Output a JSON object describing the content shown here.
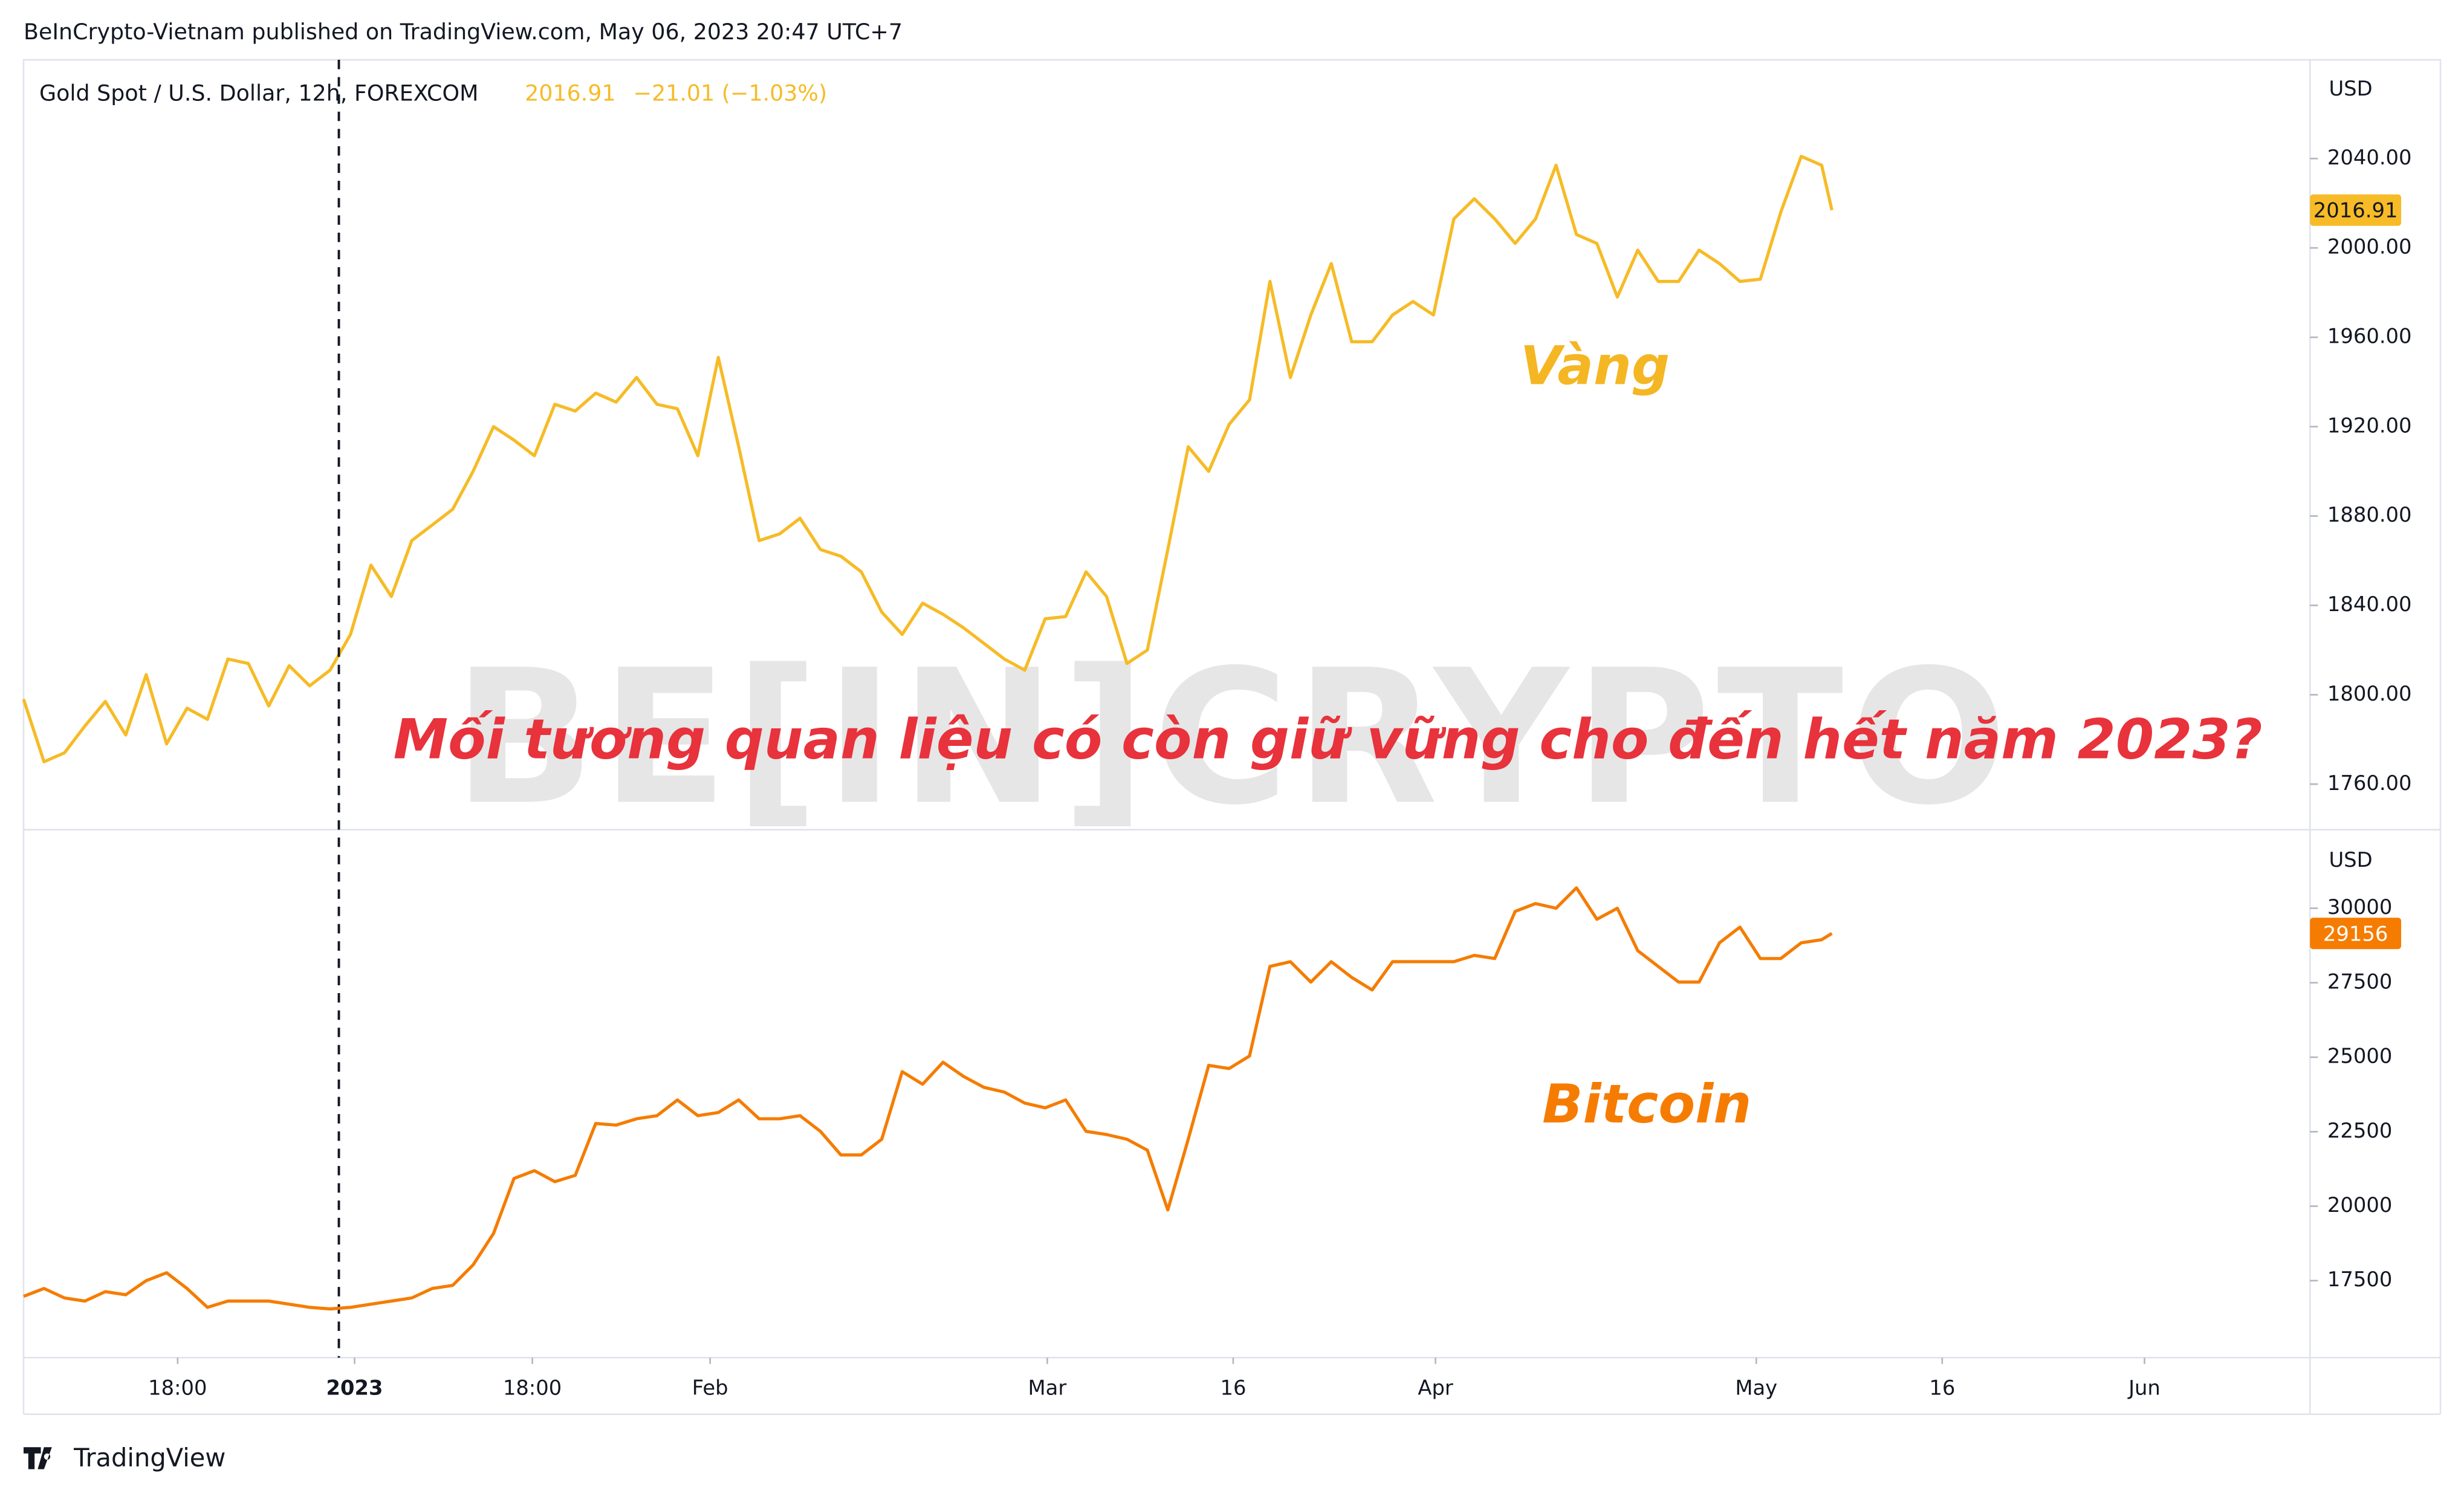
{
  "header": "BeInCrypto-Vietnam published on TradingView.com, May 06, 2023 20:47 UTC+7",
  "watermark": "BE[IN]CRYPTO",
  "headline": "Mối tương quan liệu có còn giữ vững cho đến hết năm 2023?",
  "footer": "TradingView",
  "chart_data": [
    {
      "type": "line",
      "title": "Gold Spot / U.S. Dollar, 12h, FOREXCOM",
      "last_price": "2016.91",
      "last_change": "−21.01 (−1.03%)",
      "y_unit": "USD",
      "x": [
        0,
        1,
        2,
        3,
        4,
        5,
        6,
        7,
        8,
        9,
        10,
        11,
        12,
        13,
        14,
        15,
        16,
        17,
        18,
        19,
        20,
        21,
        22,
        23,
        24,
        25,
        26,
        27,
        28,
        29,
        30,
        31,
        32,
        33,
        34,
        35,
        36,
        37,
        38,
        39,
        40,
        41,
        42,
        43,
        44,
        45,
        46,
        47,
        48,
        49,
        50,
        51,
        52,
        53,
        54,
        55,
        56,
        57,
        58,
        59,
        60,
        61,
        62,
        63,
        64,
        65,
        66,
        67,
        68,
        69,
        70,
        71,
        72,
        73,
        74,
        75,
        76,
        77,
        78,
        79,
        80,
        81,
        82,
        83,
        84,
        85,
        86,
        87,
        88,
        88.5
      ],
      "xlim": [
        0,
        111.9
      ],
      "series": [
        {
          "name": "Vàng",
          "color": "#f6bb26",
          "values": [
            1798,
            1770,
            1774,
            1786,
            1797,
            1782,
            1809,
            1778,
            1794,
            1789,
            1816,
            1814,
            1795,
            1813,
            1804,
            1811,
            1827,
            1858,
            1844,
            1869,
            1876,
            1883,
            1900,
            1920,
            1914,
            1907,
            1930,
            1927,
            1935,
            1931,
            1942,
            1930,
            1928,
            1907,
            1951,
            1911,
            1869,
            1872,
            1879,
            1865,
            1862,
            1855,
            1837,
            1827,
            1841,
            1836,
            1830,
            1823,
            1816,
            1811,
            1834,
            1835,
            1855,
            1844,
            1814,
            1820,
            1865,
            1911,
            1900,
            1921,
            1932,
            1985,
            1942,
            1970,
            1993,
            1958,
            1958,
            1970,
            1976,
            1970,
            2013,
            2022,
            2013,
            2002,
            2013,
            2037,
            2006,
            2002,
            1978,
            1999,
            1985,
            1985,
            1999,
            1993,
            1985,
            1986,
            2016,
            2041,
            2037,
            2016.91
          ]
        }
      ],
      "ylim": [
        1739.6,
        2084.2
      ],
      "yticks": [
        {
          "value": 1760,
          "label": "1760.00"
        },
        {
          "value": 1800,
          "label": "1800.00"
        },
        {
          "value": 1840,
          "label": "1840.00"
        },
        {
          "value": 1880,
          "label": "1880.00"
        },
        {
          "value": 1920,
          "label": "1920.00"
        },
        {
          "value": 1960,
          "label": "1960.00"
        },
        {
          "value": 2000,
          "label": "2000.00"
        },
        {
          "value": 2040,
          "label": "2040.00"
        }
      ]
    },
    {
      "type": "line",
      "y_unit": "USD",
      "x": [
        0,
        1,
        2,
        3,
        4,
        5,
        6,
        7,
        8,
        9,
        10,
        11,
        12,
        13,
        14,
        15,
        16,
        17,
        18,
        19,
        20,
        21,
        22,
        23,
        24,
        25,
        26,
        27,
        28,
        29,
        30,
        31,
        32,
        33,
        34,
        35,
        36,
        37,
        38,
        39,
        40,
        41,
        42,
        43,
        44,
        45,
        46,
        47,
        48,
        49,
        50,
        51,
        52,
        53,
        54,
        55,
        56,
        57,
        58,
        59,
        60,
        61,
        62,
        63,
        64,
        65,
        66,
        67,
        68,
        69,
        70,
        71,
        72,
        73,
        74,
        75,
        76,
        77,
        78,
        79,
        80,
        81,
        82,
        83,
        84,
        85,
        86,
        87,
        88,
        88.5
      ],
      "xlim": [
        0,
        111.9
      ],
      "xticks": [
        {
          "value": 7.54,
          "label": "18:00"
        },
        {
          "value": 16.2,
          "label": "2023"
        },
        {
          "value": 24.9,
          "label": "18:00"
        },
        {
          "value": 33.6,
          "label": "Feb"
        },
        {
          "value": 50.1,
          "label": "Mar"
        },
        {
          "value": 59.2,
          "label": "16"
        },
        {
          "value": 69.1,
          "label": "Apr"
        },
        {
          "value": 84.8,
          "label": "May"
        },
        {
          "value": 93.9,
          "label": "16"
        },
        {
          "value": 103.8,
          "label": "Jun"
        }
      ],
      "series": [
        {
          "name": "Bitcoin",
          "color": "#f57c00",
          "values": [
            16973,
            17237,
            16920,
            16815,
            17131,
            17026,
            17500,
            17764,
            17237,
            16604,
            16815,
            16815,
            16815,
            16710,
            16604,
            16551,
            16604,
            16710,
            16815,
            16920,
            17237,
            17342,
            18028,
            19083,
            20929,
            21192,
            20823,
            21034,
            22775,
            22722,
            22933,
            23038,
            23566,
            23038,
            23144,
            23566,
            22933,
            22933,
            23038,
            22511,
            21720,
            21720,
            22247,
            24515,
            24093,
            24832,
            24357,
            23988,
            23830,
            23460,
            23302,
            23566,
            22511,
            22405,
            22247,
            21878,
            19874,
            22247,
            24726,
            24621,
            25043,
            28049,
            28207,
            27522,
            28207,
            27680,
            27258,
            28207,
            28207,
            28207,
            28207,
            28418,
            28312,
            29895,
            30158,
            30000,
            30686,
            29631,
            30000,
            28576,
            28049,
            27522,
            27522,
            28840,
            29367,
            28312,
            28312,
            28840,
            28945,
            29156
          ]
        }
      ],
      "ylim": [
        14916,
        32637
      ],
      "yticks": [
        17500,
        20000,
        22500,
        25000,
        27500,
        30000
      ]
    }
  ]
}
